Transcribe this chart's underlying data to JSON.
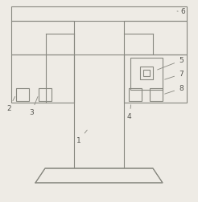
{
  "bg_color": "#eeebe5",
  "line_color": "#888880",
  "line_width": 0.8,
  "figsize": [
    2.46,
    2.52
  ],
  "dpi": 100,
  "label_fontsize": 6.5,
  "label_color": "#555550"
}
